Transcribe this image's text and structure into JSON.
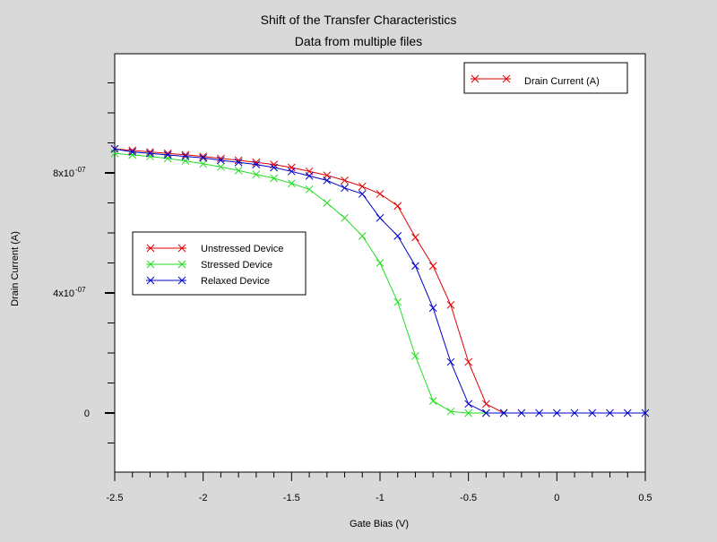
{
  "chart_data": {
    "type": "line",
    "title": "Shift of the Transfer Characteristics",
    "subtitle": "Data from multiple files",
    "xlabel": "Gate Bias (V)",
    "ylabel": "Drain Current (A)",
    "xlim": [
      -2.5,
      0.5
    ],
    "ylim": [
      -2e-07,
      1.2e-06
    ],
    "x_ticks": [
      -2.5,
      -2,
      -1.5,
      -1,
      -0.5,
      0,
      0.5
    ],
    "x_tick_labels": [
      "-2.5",
      "-2",
      "-1.5",
      "-1",
      "-0.5",
      "0",
      "0.5"
    ],
    "y_ticks": [
      0,
      4e-07,
      8e-07
    ],
    "y_tick_labels": [
      {
        "value": 0,
        "mantissa": "0",
        "exponent": ""
      },
      {
        "value": 4e-07,
        "mantissa": "4x10",
        "exponent": "-07"
      },
      {
        "value": 8e-07,
        "mantissa": "8x10",
        "exponent": "-07"
      }
    ],
    "y_minor_step": 1e-07,
    "x_minor_step": 0.1,
    "grid": false,
    "marker": "x",
    "series": [
      {
        "name": "Unstressed Device",
        "color": "#e00000",
        "x": [
          -2.5,
          -2.4,
          -2.3,
          -2.2,
          -2.1,
          -2.0,
          -1.9,
          -1.8,
          -1.7,
          -1.6,
          -1.5,
          -1.4,
          -1.3,
          -1.2,
          -1.1,
          -1.0,
          -0.9,
          -0.8,
          -0.7,
          -0.6,
          -0.5,
          -0.4,
          -0.3
        ],
        "y": [
          8.8e-07,
          8.75e-07,
          8.7e-07,
          8.65e-07,
          8.6e-07,
          8.55e-07,
          8.48e-07,
          8.42e-07,
          8.35e-07,
          8.28e-07,
          8.18e-07,
          8.05e-07,
          7.92e-07,
          7.75e-07,
          7.55e-07,
          7.3e-07,
          6.9e-07,
          5.85e-07,
          4.9e-07,
          3.6e-07,
          1.7e-07,
          3e-08,
          0
        ]
      },
      {
        "name": "Stressed Device",
        "color": "#22dd22",
        "x": [
          -2.5,
          -2.4,
          -2.3,
          -2.2,
          -2.1,
          -2.0,
          -1.9,
          -1.8,
          -1.7,
          -1.6,
          -1.5,
          -1.4,
          -1.3,
          -1.2,
          -1.1,
          -1.0,
          -0.9,
          -0.8,
          -0.7,
          -0.6,
          -0.5,
          -0.4,
          -0.3
        ],
        "y": [
          8.65e-07,
          8.6e-07,
          8.55e-07,
          8.48e-07,
          8.4e-07,
          8.3e-07,
          8.2e-07,
          8.08e-07,
          7.95e-07,
          7.82e-07,
          7.65e-07,
          7.45e-07,
          7e-07,
          6.5e-07,
          5.9e-07,
          5e-07,
          3.7e-07,
          1.9e-07,
          4e-08,
          5e-09,
          0,
          0,
          0
        ]
      },
      {
        "name": "Relaxed Device",
        "color": "#0000cc",
        "x": [
          -2.5,
          -2.4,
          -2.3,
          -2.2,
          -2.1,
          -2.0,
          -1.9,
          -1.8,
          -1.7,
          -1.6,
          -1.5,
          -1.4,
          -1.3,
          -1.2,
          -1.1,
          -1.0,
          -0.9,
          -0.8,
          -0.7,
          -0.6,
          -0.5,
          -0.4,
          -0.3,
          -0.2,
          -0.1,
          0.0,
          0.1,
          0.2,
          0.3,
          0.4,
          0.5
        ],
        "y": [
          8.8e-07,
          8.7e-07,
          8.65e-07,
          8.6e-07,
          8.55e-07,
          8.5e-07,
          8.42e-07,
          8.35e-07,
          8.28e-07,
          8.18e-07,
          8.05e-07,
          7.9e-07,
          7.75e-07,
          7.5e-07,
          7.3e-07,
          6.5e-07,
          5.9e-07,
          4.9e-07,
          3.5e-07,
          1.7e-07,
          3e-08,
          0,
          0,
          0,
          0,
          0,
          0,
          0,
          0,
          0,
          0
        ]
      }
    ],
    "legends": [
      {
        "placement": "left-middle",
        "entries": [
          "Unstressed Device",
          "Stressed Device",
          "Relaxed Device"
        ]
      },
      {
        "placement": "top-right",
        "entries": [
          "Drain Current (A)"
        ],
        "colors": [
          "#e00000"
        ]
      }
    ]
  }
}
